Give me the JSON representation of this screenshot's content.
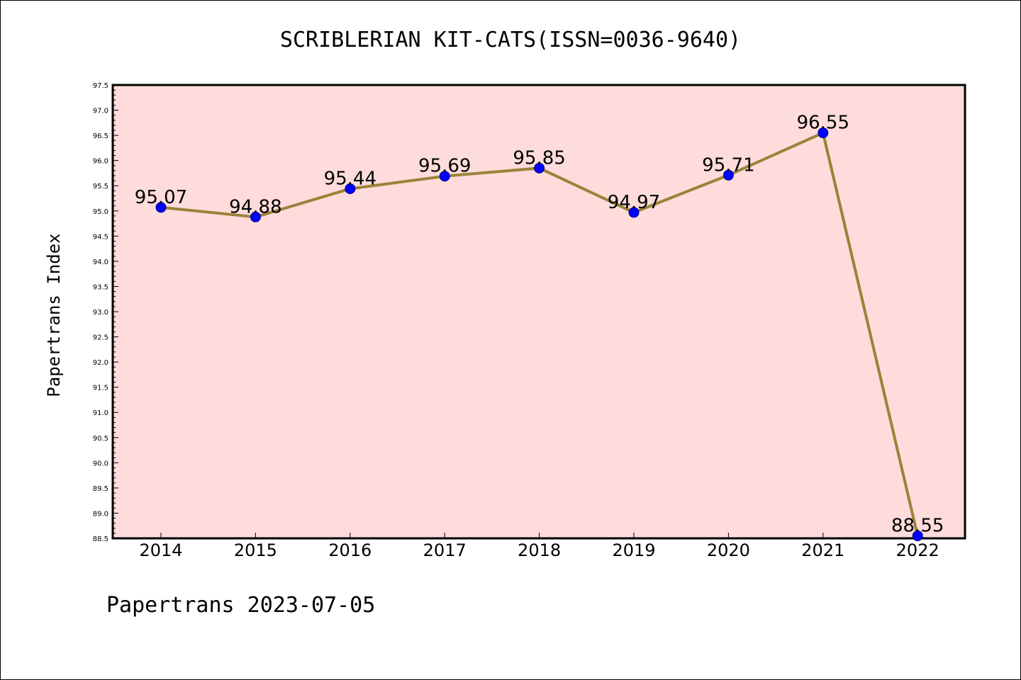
{
  "chart_data": {
    "type": "line",
    "title": "SCRIBLERIAN KIT-CATS(ISSN=0036-9640)",
    "ylabel": "Papertrans Index",
    "xlabel": "",
    "categories": [
      "2014",
      "2015",
      "2016",
      "2017",
      "2018",
      "2019",
      "2020",
      "2021",
      "2022"
    ],
    "series": [
      {
        "values": [
          95.07,
          94.88,
          95.44,
          95.69,
          95.85,
          94.97,
          95.71,
          96.55,
          88.55
        ],
        "labels": [
          "95.07",
          "94.88",
          "95.44",
          "95.69",
          "95.85",
          "94.97",
          "95.71",
          "96.55",
          "88.55"
        ]
      }
    ],
    "ylim": [
      88.5,
      97.5
    ],
    "yticks": [
      "88.5",
      "89.0",
      "89.5",
      "90.0",
      "90.5",
      "91.0",
      "91.5",
      "92.0",
      "92.5",
      "93.0",
      "93.5",
      "94.0",
      "94.5",
      "95.0",
      "95.5",
      "96.0",
      "96.5",
      "97.0",
      "97.5"
    ],
    "grid": false,
    "colors": {
      "plot_bg": "#fddcdb",
      "line": "#9a8338",
      "marker": "#0000ff"
    }
  },
  "footer": "Papertrans 2023-07-05"
}
